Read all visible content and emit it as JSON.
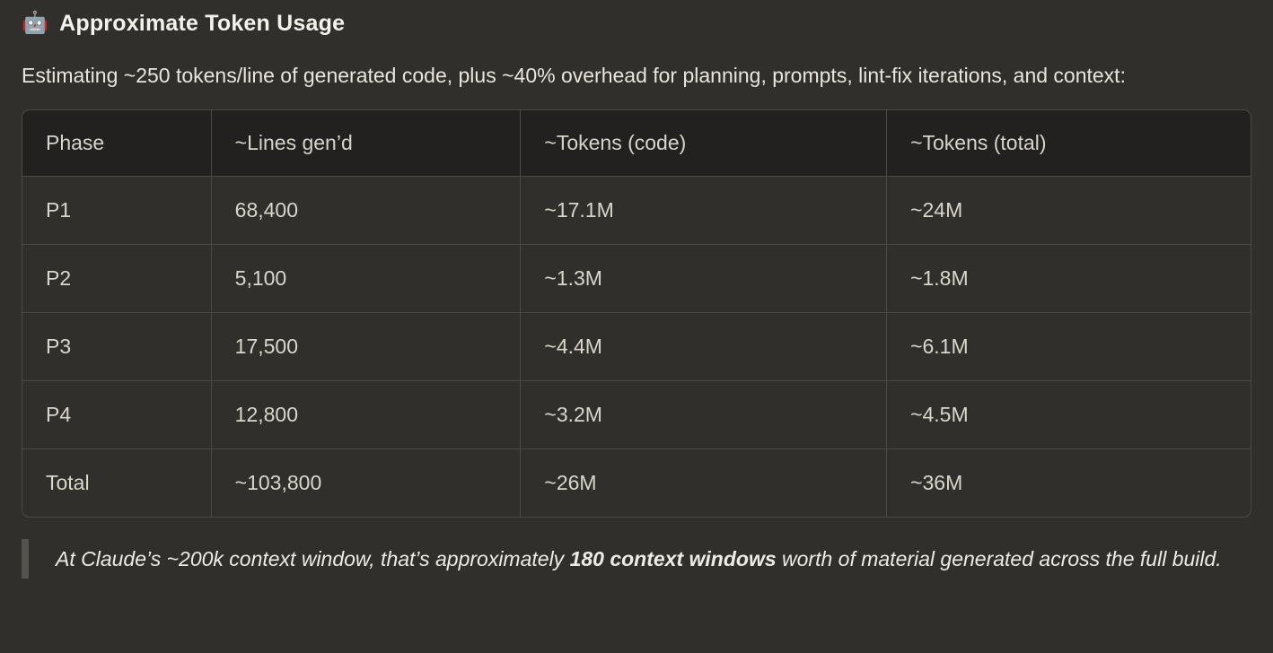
{
  "heading": {
    "emoji": "🤖",
    "title": "Approximate Token Usage"
  },
  "intro": "Estimating ~250 tokens/line of generated code, plus ~40% overhead for planning, prompts, lint-fix iterations, and context:",
  "table": {
    "headers": [
      "Phase",
      "~Lines gen’d",
      "~Tokens (code)",
      "~Tokens (total)"
    ],
    "rows": [
      [
        "P1",
        "68,400",
        "~17.1M",
        "~24M"
      ],
      [
        "P2",
        "5,100",
        "~1.3M",
        "~1.8M"
      ],
      [
        "P3",
        "17,500",
        "~4.4M",
        "~6.1M"
      ],
      [
        "P4",
        "12,800",
        "~3.2M",
        "~4.5M"
      ],
      [
        "Total",
        "~103,800",
        "~26M",
        "~36M"
      ]
    ]
  },
  "blockquote": {
    "prefix": "At Claude’s ~200k context window, that’s approximately ",
    "bold": "180 context windows",
    "suffix": " worth of material generated across the full build."
  },
  "colors": {
    "page_background": "#312f2b",
    "table_header_background": "#222120",
    "table_border": "#4c4a45",
    "body_text": "#d9d6cc",
    "heading_text": "#f4f2ed",
    "blockquote_bar": "#55534e"
  }
}
